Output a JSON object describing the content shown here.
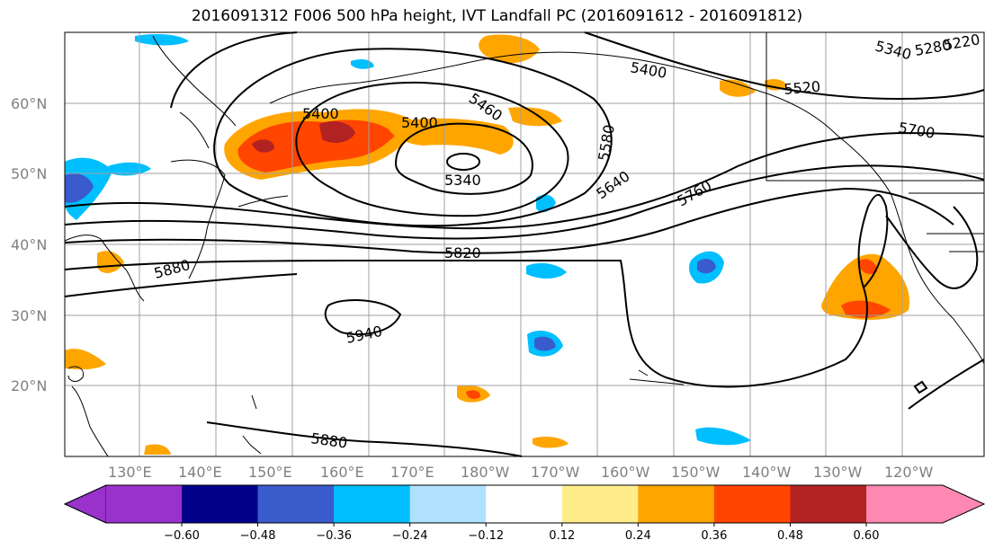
{
  "title": "2016091312 F006 500 hPa height, IVT Landfall PC (2016091612 - 2016091812)",
  "map": {
    "lat_labels": [
      "60°N",
      "50°N",
      "40°N",
      "30°N",
      "20°N"
    ],
    "lon_labels": [
      "130°E",
      "140°E",
      "150°E",
      "160°E",
      "170°E",
      "180°W",
      "170°W",
      "160°W",
      "150°W",
      "140°W",
      "130°W",
      "120°W"
    ],
    "contour_labels": [
      "5400",
      "5400",
      "5460",
      "5340",
      "5580",
      "5640",
      "5760",
      "5820",
      "5880",
      "5940",
      "5880",
      "5400",
      "5520",
      "5700",
      "5340",
      "5280",
      "5220"
    ],
    "colors": {
      "land_outline": "#000000",
      "grid": "#a0a0a0",
      "contour": "#000000"
    }
  },
  "colorbar": {
    "ticks": [
      "−0.60",
      "−0.48",
      "−0.36",
      "−0.24",
      "−0.12",
      "0.12",
      "0.24",
      "0.36",
      "0.48",
      "0.60"
    ],
    "colors": [
      "#9932cc",
      "#00008b",
      "#3a5bcb",
      "#00bfff",
      "#b0e2ff",
      "#ffffff",
      "#ffec8b",
      "#ffa500",
      "#ff4500",
      "#b22222",
      "#ff88b2"
    ]
  }
}
